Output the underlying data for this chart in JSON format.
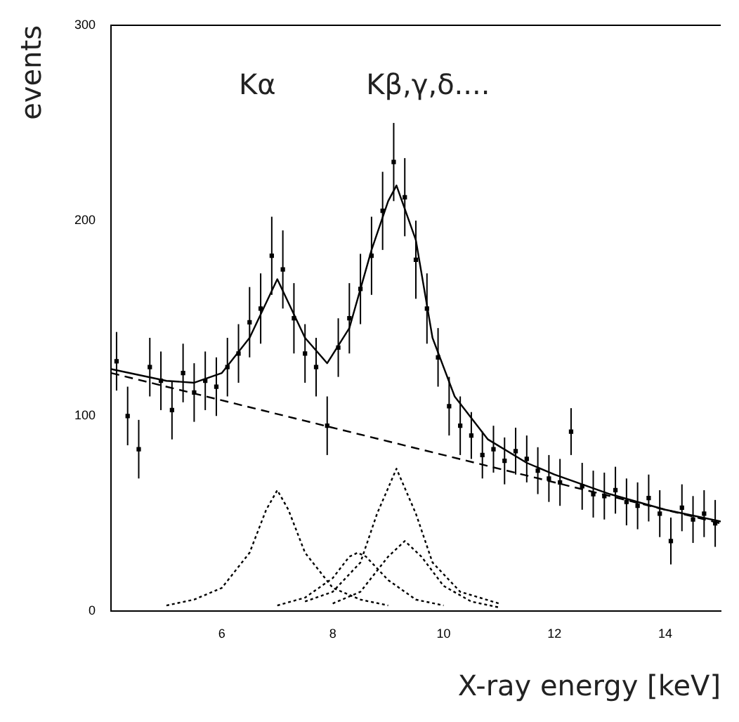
{
  "chart_data": {
    "type": "line",
    "xlabel": "X-ray energy [keV]",
    "ylabel": "events",
    "xlim": [
      4,
      15
    ],
    "xticks": [
      6,
      8,
      10,
      12,
      14
    ],
    "ylim": [
      0,
      300
    ],
    "yticks": [
      0,
      100,
      200,
      300
    ],
    "grid": false,
    "legend": false,
    "annotations": [
      "Kα",
      "Kβ,γ,δ...."
    ],
    "series": [
      {
        "type": "scatter",
        "color": "#000000",
        "marker": "square",
        "x": [
          4.1,
          4.3,
          4.5,
          4.7,
          4.9,
          5.1,
          5.3,
          5.5,
          5.7,
          5.9,
          6.1,
          6.3,
          6.5,
          6.7,
          6.9,
          7.1,
          7.3,
          7.5,
          7.7,
          7.9,
          8.1,
          8.3,
          8.5,
          8.7,
          8.9,
          9.1,
          9.3,
          9.5,
          9.7,
          9.9,
          10.1,
          10.3,
          10.5,
          10.7,
          10.9,
          11.1,
          11.3,
          11.5,
          11.7,
          11.9,
          12.1,
          12.3,
          12.5,
          12.7,
          12.9,
          13.1,
          13.3,
          13.5,
          13.7,
          13.9,
          14.1,
          14.3,
          14.5,
          14.7,
          14.9
        ],
        "values": [
          128,
          100,
          83,
          125,
          118,
          103,
          122,
          112,
          118,
          115,
          125,
          132,
          148,
          155,
          182,
          175,
          150,
          132,
          125,
          95,
          135,
          150,
          165,
          182,
          205,
          230,
          212,
          180,
          155,
          130,
          105,
          95,
          90,
          80,
          83,
          77,
          82,
          78,
          72,
          68,
          66,
          92,
          64,
          60,
          59,
          62,
          56,
          54,
          58,
          50,
          36,
          53,
          47,
          50,
          45
        ],
        "errors": [
          15,
          15,
          15,
          15,
          15,
          15,
          15,
          15,
          15,
          15,
          15,
          15,
          18,
          18,
          20,
          20,
          18,
          15,
          15,
          15,
          15,
          18,
          18,
          20,
          20,
          20,
          20,
          20,
          18,
          15,
          15,
          15,
          12,
          12,
          12,
          12,
          12,
          12,
          12,
          12,
          12,
          12,
          12,
          12,
          12,
          12,
          12,
          12,
          12,
          12,
          12,
          12,
          12,
          12,
          12
        ]
      },
      {
        "color": "#000000",
        "line_style": "solid",
        "x": [
          4,
          5,
          5.5,
          6,
          6.5,
          7,
          7.5,
          7.9,
          8.3,
          8.7,
          9,
          9.15,
          9.5,
          9.8,
          10.2,
          10.8,
          11.5,
          12,
          13,
          14,
          15
        ],
        "values": [
          124,
          118,
          117,
          122,
          140,
          170,
          140,
          127,
          145,
          185,
          210,
          218,
          190,
          140,
          110,
          88,
          76,
          70,
          60,
          52,
          46
        ]
      },
      {
        "color": "#000000",
        "line_style": "dashed",
        "x": [
          4,
          15
        ],
        "values": [
          122,
          45
        ]
      },
      {
        "color": "#000000",
        "line_style": "dotted",
        "x": [
          5,
          5.5,
          6,
          6.5,
          6.8,
          7,
          7.2,
          7.5,
          8,
          8.5,
          9
        ],
        "values": [
          3,
          6,
          12,
          30,
          52,
          62,
          52,
          30,
          12,
          6,
          3
        ]
      },
      {
        "color": "#000000",
        "line_style": "dotted",
        "x": [
          7,
          7.5,
          8,
          8.3,
          8.45,
          8.6,
          9,
          9.5,
          10
        ],
        "values": [
          3,
          7,
          17,
          28,
          30,
          28,
          16,
          6,
          3
        ]
      },
      {
        "color": "#000000",
        "line_style": "dotted",
        "x": [
          7.5,
          8,
          8.5,
          8.8,
          9.15,
          9.5,
          9.8,
          10.3,
          11
        ],
        "values": [
          5,
          10,
          25,
          50,
          73,
          50,
          25,
          10,
          4
        ]
      },
      {
        "color": "#000000",
        "line_style": "dotted",
        "x": [
          8,
          8.5,
          9,
          9.3,
          9.6,
          10,
          10.5,
          11
        ],
        "values": [
          4,
          10,
          28,
          36,
          28,
          13,
          5,
          2
        ]
      }
    ]
  }
}
